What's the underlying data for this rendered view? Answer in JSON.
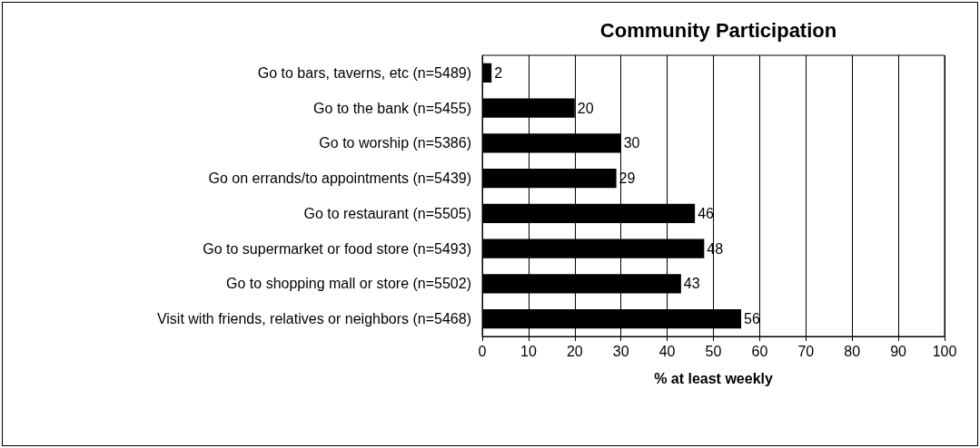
{
  "chart_data": {
    "type": "bar",
    "orientation": "horizontal",
    "title": "Community Participation",
    "xlabel": "% at least weekly",
    "categories": [
      "Go to bars, taverns, etc (n=5489)",
      "Go to the bank (n=5455)",
      "Go to worship (n=5386)",
      "Go on errands/to appointments (n=5439)",
      "Go to restaurant (n=5505)",
      "Go to supermarket or food store (n=5493)",
      "Go to shopping mall or store (n=5502)",
      "Visit with friends, relatives or neighbors (n=5468)"
    ],
    "values": [
      2,
      20,
      30,
      29,
      46,
      48,
      43,
      56
    ],
    "color": "#000000",
    "xlim": [
      0,
      100
    ],
    "xticks": [
      0,
      10,
      20,
      30,
      40,
      50,
      60,
      70,
      80,
      90,
      100
    ],
    "grid": "x",
    "data_labels": true
  }
}
